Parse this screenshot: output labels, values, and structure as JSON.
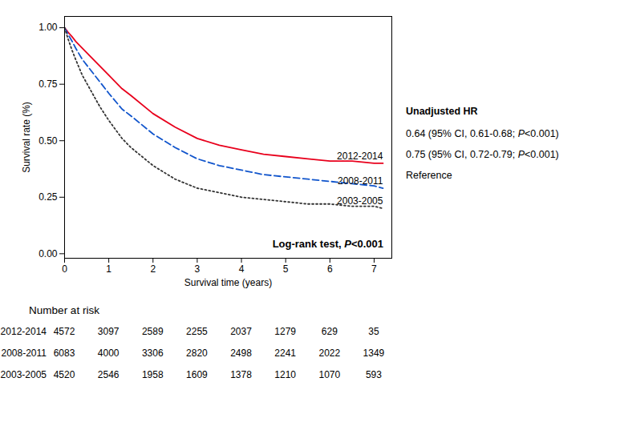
{
  "chart_data": {
    "type": "line",
    "xlabel": "Survival time (years)",
    "ylabel": "Survival rate (%)",
    "xlim": [
      0,
      7.4
    ],
    "ylim": [
      -0.02,
      1.05
    ],
    "xticks": [
      0,
      1,
      2,
      3,
      4,
      5,
      6,
      7
    ],
    "yticks": [
      {
        "value": 0.0,
        "label": "0.00"
      },
      {
        "value": 0.25,
        "label": "0.25"
      },
      {
        "value": 0.5,
        "label": "0.50"
      },
      {
        "value": 0.75,
        "label": "0.75"
      },
      {
        "value": 1.0,
        "label": "1.00"
      }
    ],
    "series": [
      {
        "name": "2012-2014",
        "color": "#e8001c",
        "line_style": "solid",
        "x": [
          0,
          0.08,
          0.17,
          0.25,
          0.4,
          0.6,
          0.8,
          1.0,
          1.3,
          1.5,
          2.0,
          2.5,
          3.0,
          3.5,
          4.0,
          4.5,
          5.0,
          5.5,
          6.0,
          6.5,
          7.0,
          7.2
        ],
        "values": [
          1.0,
          0.98,
          0.96,
          0.94,
          0.91,
          0.87,
          0.83,
          0.79,
          0.73,
          0.7,
          0.62,
          0.56,
          0.51,
          0.48,
          0.46,
          0.44,
          0.43,
          0.42,
          0.41,
          0.41,
          0.4,
          0.4
        ]
      },
      {
        "name": "2008-2011",
        "color": "#1155cc",
        "line_style": "dashed",
        "x": [
          0,
          0.08,
          0.17,
          0.25,
          0.4,
          0.6,
          0.8,
          1.0,
          1.3,
          1.5,
          2.0,
          2.5,
          3.0,
          3.5,
          4.0,
          4.5,
          5.0,
          5.5,
          6.0,
          6.5,
          7.0,
          7.2
        ],
        "values": [
          1.0,
          0.97,
          0.94,
          0.91,
          0.86,
          0.81,
          0.76,
          0.71,
          0.64,
          0.61,
          0.53,
          0.47,
          0.42,
          0.39,
          0.37,
          0.35,
          0.34,
          0.33,
          0.32,
          0.31,
          0.3,
          0.29
        ]
      },
      {
        "name": "2003-2005",
        "color": "#333333",
        "line_style": "dotted",
        "x": [
          0,
          0.08,
          0.17,
          0.25,
          0.4,
          0.6,
          0.8,
          1.0,
          1.3,
          1.5,
          2.0,
          2.5,
          3.0,
          3.5,
          4.0,
          4.5,
          5.0,
          5.5,
          6.0,
          6.5,
          7.0,
          7.2
        ],
        "values": [
          1.0,
          0.95,
          0.9,
          0.86,
          0.79,
          0.72,
          0.65,
          0.59,
          0.51,
          0.47,
          0.39,
          0.33,
          0.29,
          0.27,
          0.25,
          0.24,
          0.23,
          0.22,
          0.22,
          0.21,
          0.21,
          0.2
        ]
      }
    ],
    "annotations": [
      "Log-rank test, P<0.001"
    ],
    "hr_title": "Unadjusted HR",
    "hr_lines": [
      "0.64 (95% CI, 0.61-0.68; P<0.001)",
      "0.75 (95% CI, 0.72-0.79; P<0.001)",
      "Reference"
    ],
    "number_at_risk": {
      "title": "Number at risk",
      "x": [
        0,
        1,
        2,
        3,
        4,
        5,
        6,
        7
      ],
      "rows": [
        {
          "label": "2012-2014",
          "values": [
            4572,
            3097,
            2589,
            2255,
            2037,
            1279,
            629,
            35
          ]
        },
        {
          "label": "2008-2011",
          "values": [
            6083,
            4000,
            3306,
            2820,
            2498,
            2241,
            2022,
            1349
          ]
        },
        {
          "label": "2003-2005",
          "values": [
            4520,
            2546,
            1958,
            1609,
            1378,
            1210,
            1070,
            593
          ]
        }
      ]
    }
  }
}
